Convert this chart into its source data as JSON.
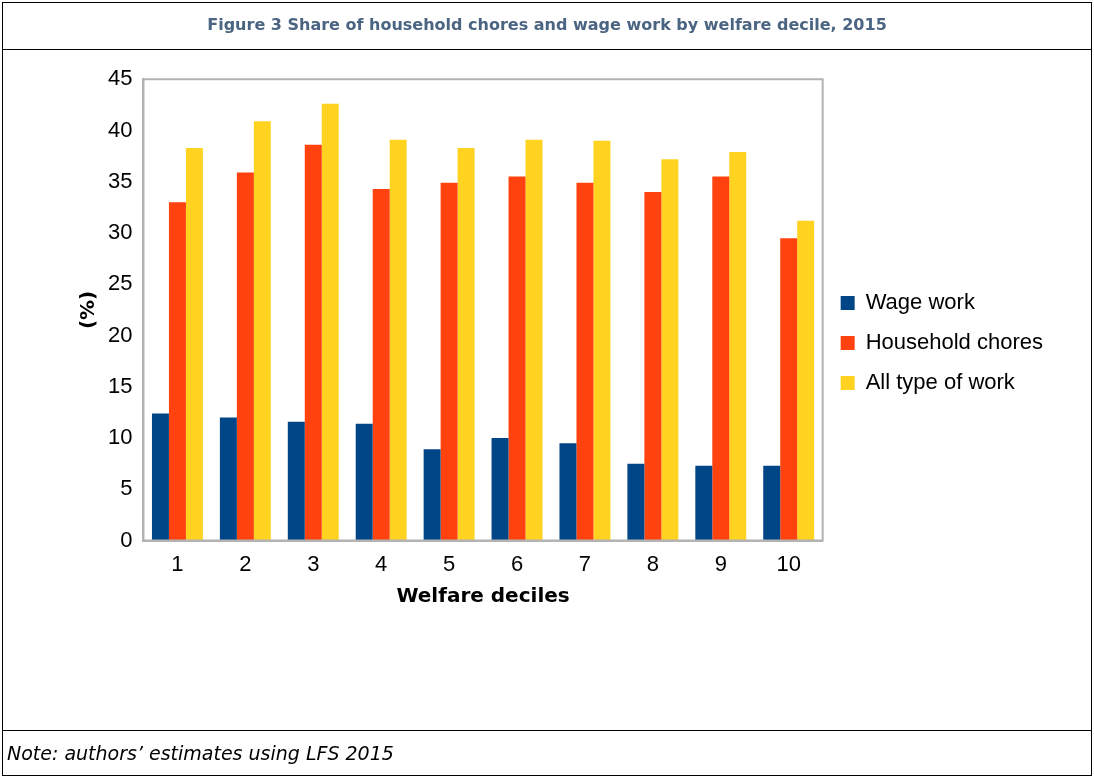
{
  "chart_data": {
    "type": "bar",
    "title": "Figure 3 Share of household chores and wage work by welfare decile, 2015",
    "xlabel": "Welfare deciles",
    "ylabel": "(%)",
    "categories": [
      "1",
      "2",
      "3",
      "4",
      "5",
      "6",
      "7",
      "8",
      "9",
      "10"
    ],
    "series": [
      {
        "name": "Wage work",
        "color": "#004586",
        "values": [
          12.4,
          12.0,
          11.6,
          11.4,
          8.9,
          10.0,
          9.5,
          7.5,
          7.3,
          7.3
        ]
      },
      {
        "name": "Household chores",
        "color": "#ff420e",
        "values": [
          33.0,
          35.9,
          38.6,
          34.3,
          34.9,
          35.5,
          34.9,
          34.0,
          35.5,
          29.5
        ]
      },
      {
        "name": "All type of work",
        "color": "#ffd320",
        "values": [
          38.3,
          40.9,
          42.6,
          39.1,
          38.3,
          39.1,
          39.0,
          37.2,
          37.9,
          31.2
        ]
      }
    ],
    "ylim": [
      0,
      45
    ],
    "yticks": [
      0,
      5,
      10,
      15,
      20,
      25,
      30,
      35,
      40,
      45
    ],
    "grid": false,
    "legend": "right",
    "annotations": [
      "Note: authors’ estimates using LFS 2015"
    ]
  }
}
